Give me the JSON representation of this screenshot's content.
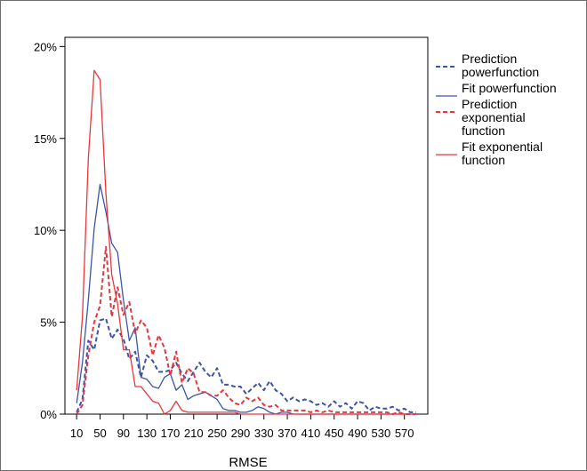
{
  "chart_data": {
    "type": "line",
    "title": "",
    "xlabel": "RMSE",
    "ylabel": "",
    "x_tick_labels": [
      "10",
      "50",
      "90",
      "130",
      "170",
      "210",
      "250",
      "290",
      "330",
      "370",
      "410",
      "450",
      "490",
      "530",
      "570"
    ],
    "x_tick_values": [
      10,
      50,
      90,
      130,
      170,
      210,
      250,
      290,
      330,
      370,
      410,
      450,
      490,
      530,
      570
    ],
    "y_tick_labels": [
      "0%",
      "5%",
      "10%",
      "15%",
      "20%"
    ],
    "y_tick_values": [
      0,
      5,
      10,
      15,
      20
    ],
    "xlim": [
      -10,
      610
    ],
    "ylim": [
      0,
      20.5
    ],
    "grid": false,
    "legend_position": "right",
    "x": [
      10,
      20,
      30,
      40,
      50,
      60,
      70,
      80,
      90,
      100,
      110,
      120,
      130,
      140,
      150,
      160,
      170,
      180,
      190,
      200,
      210,
      220,
      230,
      240,
      250,
      260,
      270,
      280,
      290,
      300,
      310,
      320,
      330,
      340,
      350,
      360,
      370,
      380,
      390,
      400,
      410,
      420,
      430,
      440,
      450,
      460,
      470,
      480,
      490,
      500,
      510,
      520,
      530,
      540,
      550,
      560,
      570,
      580,
      590
    ],
    "series": [
      {
        "name": "Prediction powerfunction",
        "color": "#3b55a6",
        "dash": "dashed",
        "values": [
          0.1,
          0.8,
          4.0,
          3.5,
          5.1,
          5.2,
          4.1,
          4.6,
          4.1,
          3.0,
          3.4,
          2.0,
          3.2,
          2.9,
          2.3,
          2.3,
          2.4,
          2.8,
          2.2,
          1.8,
          2.3,
          2.8,
          2.3,
          2.0,
          2.5,
          1.6,
          1.6,
          1.5,
          1.5,
          1.1,
          1.4,
          1.7,
          1.3,
          1.8,
          1.3,
          1.1,
          0.7,
          0.9,
          0.7,
          0.8,
          0.7,
          0.5,
          0.6,
          0.4,
          0.7,
          0.4,
          0.6,
          0.3,
          0.7,
          0.6,
          0.2,
          0.4,
          0.3,
          0.3,
          0.4,
          0.2,
          0.3,
          0.1,
          0.1
        ]
      },
      {
        "name": "Fit powerfunction",
        "color": "#3b55a6",
        "dash": "solid",
        "values": [
          0.6,
          2.8,
          6.2,
          10.1,
          12.5,
          11.0,
          9.3,
          8.8,
          6.2,
          4.0,
          4.7,
          2.0,
          1.9,
          1.5,
          1.4,
          2.0,
          2.2,
          1.3,
          1.6,
          0.8,
          1.0,
          1.1,
          1.2,
          1.0,
          0.8,
          0.3,
          0.2,
          0.2,
          0.1,
          0.1,
          0.2,
          0.4,
          0.3,
          0.1,
          0.0,
          0.1,
          0.1,
          0.0,
          0.0,
          0.0,
          0.0,
          0.0,
          0.0,
          0.0,
          0.0,
          0.0,
          0.0,
          0.0,
          0.0,
          0.0,
          0.0,
          0.0,
          0.0,
          0.0,
          0.0,
          0.0,
          0.0,
          0.0,
          0.0
        ]
      },
      {
        "name": "Prediction exponential function",
        "color": "#e8363e",
        "dash": "dashed",
        "values": [
          0.0,
          0.5,
          3.2,
          5.0,
          5.9,
          9.1,
          5.3,
          6.9,
          5.4,
          6.1,
          4.4,
          5.1,
          4.7,
          3.2,
          4.3,
          3.6,
          2.1,
          3.4,
          1.7,
          2.5,
          2.2,
          1.2,
          1.2,
          1.0,
          1.0,
          1.3,
          0.9,
          0.6,
          0.5,
          0.9,
          0.7,
          0.9,
          0.5,
          0.4,
          0.5,
          0.2,
          0.2,
          0.2,
          0.2,
          0.2,
          0.1,
          0.2,
          0.1,
          0.2,
          0.1,
          0.1,
          0.1,
          0.1,
          0.1,
          0.1,
          0.1,
          0.1,
          0.1,
          0.1,
          0.0,
          0.1,
          0.0,
          0.0,
          0.0
        ]
      },
      {
        "name": "Fit exponential function",
        "color": "#e8363e",
        "dash": "solid",
        "values": [
          1.3,
          5.3,
          13.9,
          18.7,
          18.2,
          12.0,
          7.6,
          6.0,
          3.5,
          3.5,
          1.5,
          1.5,
          1.1,
          0.7,
          0.6,
          0.0,
          0.2,
          0.7,
          0.2,
          0.1,
          0.1,
          0.1,
          0.1,
          0.1,
          0.1,
          0.1,
          0.1,
          0.1,
          0.0,
          0.0,
          0.0,
          0.0,
          0.0,
          0.0,
          0.0,
          0.0,
          0.0,
          0.0,
          0.0,
          0.0,
          0.0,
          0.0,
          0.0,
          0.0,
          0.0,
          0.0,
          0.0,
          0.0,
          0.0,
          0.0,
          0.0,
          0.0,
          0.0,
          0.0,
          0.0,
          0.0,
          0.0,
          0.0,
          0.0
        ]
      }
    ]
  },
  "legend": {
    "items": [
      {
        "lines": [
          "Prediction",
          "powerfunction"
        ],
        "color": "#3b55a6",
        "dash": "dashed"
      },
      {
        "lines": [
          "Fit powerfunction"
        ],
        "color": "#3b55a6",
        "dash": "solid"
      },
      {
        "lines": [
          "Prediction",
          "exponential",
          "function"
        ],
        "color": "#e8363e",
        "dash": "dashed"
      },
      {
        "lines": [
          "Fit exponential",
          "function"
        ],
        "color": "#e8363e",
        "dash": "solid"
      }
    ]
  }
}
